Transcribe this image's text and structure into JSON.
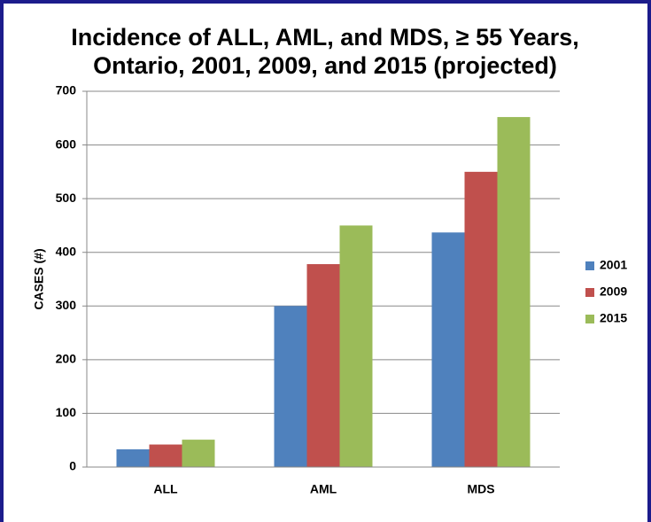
{
  "chart_data": {
    "type": "bar",
    "title": [
      "Incidence of ALL, AML, and MDS,  ≥  55 Years,",
      "Ontario,  2001, 2009, and 2015 (projected)"
    ],
    "y_label": "CASES (#)",
    "categories": [
      "ALL",
      "AML",
      "MDS"
    ],
    "series": [
      {
        "name": "2001",
        "color": "#4f81bd",
        "values": [
          33,
          300,
          437
        ]
      },
      {
        "name": "2009",
        "color": "#c0504d",
        "values": [
          42,
          378,
          550
        ]
      },
      {
        "name": "2015",
        "color": "#9bbb59",
        "values": [
          51,
          450,
          652
        ]
      }
    ],
    "ylim": [
      0,
      700
    ],
    "yticks": [
      0,
      100,
      200,
      300,
      400,
      500,
      600,
      700
    ],
    "grid": true,
    "legend": "right"
  }
}
